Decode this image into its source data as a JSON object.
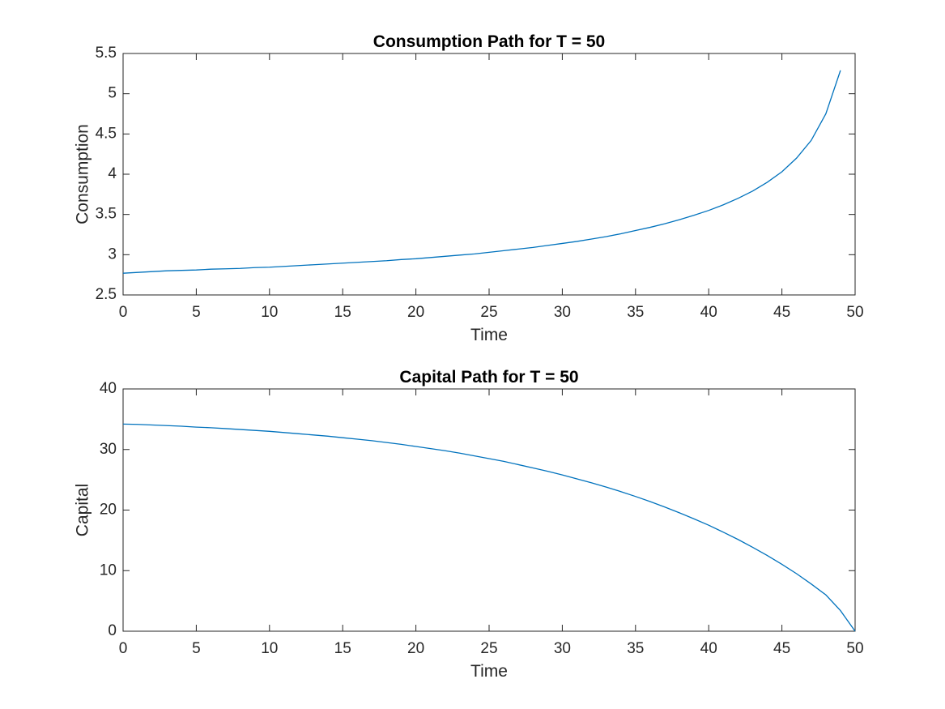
{
  "chart_data": [
    {
      "type": "line",
      "title": "Consumption Path for T = 50",
      "xlabel": "Time",
      "ylabel": "Consumption",
      "xlim": [
        0,
        50
      ],
      "ylim": [
        2.5,
        5.5
      ],
      "xticks": [
        "0",
        "5",
        "10",
        "15",
        "20",
        "25",
        "30",
        "35",
        "40",
        "45",
        "50"
      ],
      "yticks": [
        "2.5",
        "3",
        "3.5",
        "4",
        "4.5",
        "5",
        "5.5"
      ],
      "grid": false,
      "series": [
        {
          "color": "#0072BD",
          "x": [
            0,
            1,
            2,
            3,
            4,
            5,
            6,
            7,
            8,
            9,
            10,
            11,
            12,
            13,
            14,
            15,
            16,
            17,
            18,
            19,
            20,
            21,
            22,
            23,
            24,
            25,
            26,
            27,
            28,
            29,
            30,
            31,
            32,
            33,
            34,
            35,
            36,
            37,
            38,
            39,
            40,
            41,
            42,
            43,
            44,
            45,
            46,
            47,
            48,
            49
          ],
          "y": [
            2.77,
            2.78,
            2.79,
            2.8,
            2.805,
            2.81,
            2.82,
            2.825,
            2.83,
            2.84,
            2.845,
            2.855,
            2.865,
            2.875,
            2.885,
            2.895,
            2.905,
            2.915,
            2.925,
            2.94,
            2.95,
            2.965,
            2.98,
            2.995,
            3.01,
            3.03,
            3.05,
            3.07,
            3.09,
            3.115,
            3.14,
            3.165,
            3.195,
            3.225,
            3.26,
            3.3,
            3.34,
            3.385,
            3.435,
            3.49,
            3.55,
            3.62,
            3.7,
            3.79,
            3.9,
            4.03,
            4.2,
            4.42,
            4.75,
            5.29
          ]
        }
      ]
    },
    {
      "type": "line",
      "title": "Capital Path for T = 50",
      "xlabel": "Time",
      "ylabel": "Capital",
      "xlim": [
        0,
        50
      ],
      "ylim": [
        0,
        40
      ],
      "xticks": [
        "0",
        "5",
        "10",
        "15",
        "20",
        "25",
        "30",
        "35",
        "40",
        "45",
        "50"
      ],
      "yticks": [
        "0",
        "10",
        "20",
        "30",
        "40"
      ],
      "grid": false,
      "series": [
        {
          "color": "#0072BD",
          "x": [
            0,
            1,
            2,
            3,
            4,
            5,
            6,
            7,
            8,
            9,
            10,
            11,
            12,
            13,
            14,
            15,
            16,
            17,
            18,
            19,
            20,
            21,
            22,
            23,
            24,
            25,
            26,
            27,
            28,
            29,
            30,
            31,
            32,
            33,
            34,
            35,
            36,
            37,
            38,
            39,
            40,
            41,
            42,
            43,
            44,
            45,
            46,
            47,
            48,
            49,
            50
          ],
          "y": [
            34.2,
            34.15,
            34.05,
            33.95,
            33.85,
            33.7,
            33.6,
            33.45,
            33.3,
            33.15,
            33.0,
            32.8,
            32.6,
            32.4,
            32.2,
            31.95,
            31.7,
            31.45,
            31.15,
            30.85,
            30.5,
            30.15,
            29.8,
            29.4,
            28.95,
            28.5,
            28.05,
            27.5,
            26.95,
            26.4,
            25.8,
            25.15,
            24.5,
            23.8,
            23.05,
            22.25,
            21.4,
            20.5,
            19.55,
            18.55,
            17.5,
            16.35,
            15.15,
            13.85,
            12.5,
            11.05,
            9.5,
            7.8,
            6.0,
            3.4,
            0.0
          ]
        }
      ]
    }
  ]
}
